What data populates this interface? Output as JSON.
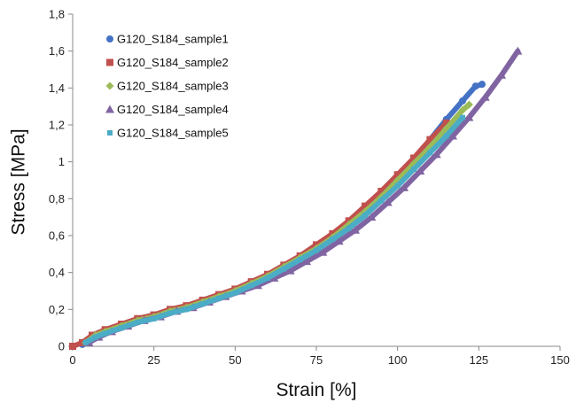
{
  "chart_data": {
    "type": "scatter",
    "title": "",
    "xlabel": "Strain [%]",
    "ylabel": "Stress [MPa]",
    "xlim": [
      0,
      150
    ],
    "ylim": [
      0,
      1.8
    ],
    "x_ticks": [
      0,
      25,
      50,
      75,
      100,
      125,
      150
    ],
    "x_tick_labels": [
      "0",
      "25",
      "50",
      "75",
      "100",
      "125",
      "150"
    ],
    "y_ticks": [
      0,
      0.2,
      0.4,
      0.6,
      0.8,
      1.0,
      1.2,
      1.4,
      1.6,
      1.8
    ],
    "y_tick_labels": [
      "0",
      "0,2",
      "0,4",
      "0,6",
      "0,8",
      "1",
      "1,2",
      "1,4",
      "1,6",
      "1,8"
    ],
    "grid": false,
    "legend_position": "top-left",
    "series": [
      {
        "name": "G120_S184_sample1",
        "color": "#4472c4",
        "marker": "circle",
        "points": [
          [
            3,
            0.01
          ],
          [
            6,
            0.05
          ],
          [
            10,
            0.08
          ],
          [
            15,
            0.11
          ],
          [
            20,
            0.14
          ],
          [
            25,
            0.16
          ],
          [
            30,
            0.19
          ],
          [
            35,
            0.21
          ],
          [
            40,
            0.24
          ],
          [
            45,
            0.27
          ],
          [
            50,
            0.3
          ],
          [
            55,
            0.34
          ],
          [
            60,
            0.38
          ],
          [
            65,
            0.43
          ],
          [
            70,
            0.48
          ],
          [
            75,
            0.53
          ],
          [
            80,
            0.59
          ],
          [
            85,
            0.66
          ],
          [
            90,
            0.74
          ],
          [
            95,
            0.82
          ],
          [
            100,
            0.91
          ],
          [
            105,
            1.01
          ],
          [
            110,
            1.12
          ],
          [
            115,
            1.23
          ],
          [
            120,
            1.33
          ],
          [
            124,
            1.41
          ],
          [
            126,
            1.42
          ]
        ]
      },
      {
        "name": "G120_S184_sample2",
        "color": "#c0504d",
        "marker": "square",
        "points": [
          [
            0,
            0.0
          ],
          [
            3,
            0.02
          ],
          [
            6,
            0.06
          ],
          [
            10,
            0.09
          ],
          [
            15,
            0.12
          ],
          [
            20,
            0.15
          ],
          [
            25,
            0.17
          ],
          [
            30,
            0.2
          ],
          [
            35,
            0.22
          ],
          [
            40,
            0.25
          ],
          [
            45,
            0.28
          ],
          [
            50,
            0.31
          ],
          [
            55,
            0.35
          ],
          [
            60,
            0.39
          ],
          [
            65,
            0.44
          ],
          [
            70,
            0.49
          ],
          [
            75,
            0.55
          ],
          [
            80,
            0.61
          ],
          [
            85,
            0.68
          ],
          [
            90,
            0.76
          ],
          [
            95,
            0.84
          ],
          [
            100,
            0.93
          ],
          [
            105,
            1.02
          ],
          [
            110,
            1.12
          ],
          [
            115,
            1.21
          ]
        ]
      },
      {
        "name": "G120_S184_sample3",
        "color": "#9bbb59",
        "marker": "diamond",
        "points": [
          [
            4,
            0.02
          ],
          [
            7,
            0.06
          ],
          [
            10,
            0.08
          ],
          [
            15,
            0.11
          ],
          [
            20,
            0.14
          ],
          [
            25,
            0.16
          ],
          [
            30,
            0.19
          ],
          [
            35,
            0.21
          ],
          [
            40,
            0.24
          ],
          [
            45,
            0.27
          ],
          [
            50,
            0.3
          ],
          [
            55,
            0.34
          ],
          [
            60,
            0.38
          ],
          [
            65,
            0.43
          ],
          [
            70,
            0.48
          ],
          [
            75,
            0.53
          ],
          [
            80,
            0.59
          ],
          [
            85,
            0.66
          ],
          [
            90,
            0.73
          ],
          [
            95,
            0.81
          ],
          [
            100,
            0.9
          ],
          [
            105,
            0.99
          ],
          [
            110,
            1.08
          ],
          [
            115,
            1.18
          ],
          [
            120,
            1.28
          ],
          [
            122,
            1.31
          ]
        ]
      },
      {
        "name": "G120_S184_sample4",
        "color": "#8064a2",
        "marker": "triangle",
        "points": [
          [
            5,
            0.02
          ],
          [
            8,
            0.05
          ],
          [
            12,
            0.08
          ],
          [
            17,
            0.11
          ],
          [
            22,
            0.14
          ],
          [
            27,
            0.16
          ],
          [
            32,
            0.19
          ],
          [
            37,
            0.21
          ],
          [
            42,
            0.24
          ],
          [
            47,
            0.27
          ],
          [
            52,
            0.3
          ],
          [
            57,
            0.33
          ],
          [
            62,
            0.37
          ],
          [
            67,
            0.41
          ],
          [
            72,
            0.46
          ],
          [
            77,
            0.51
          ],
          [
            82,
            0.57
          ],
          [
            87,
            0.63
          ],
          [
            92,
            0.7
          ],
          [
            97,
            0.78
          ],
          [
            102,
            0.86
          ],
          [
            107,
            0.95
          ],
          [
            112,
            1.04
          ],
          [
            117,
            1.14
          ],
          [
            122,
            1.24
          ],
          [
            127,
            1.35
          ],
          [
            132,
            1.47
          ],
          [
            137,
            1.6
          ]
        ]
      },
      {
        "name": "G120_S184_sample5",
        "color": "#4bacc6",
        "marker": "small-square",
        "points": [
          [
            4,
            0.02
          ],
          [
            7,
            0.05
          ],
          [
            10,
            0.07
          ],
          [
            15,
            0.1
          ],
          [
            20,
            0.13
          ],
          [
            25,
            0.15
          ],
          [
            30,
            0.18
          ],
          [
            35,
            0.2
          ],
          [
            40,
            0.23
          ],
          [
            45,
            0.26
          ],
          [
            50,
            0.29
          ],
          [
            55,
            0.33
          ],
          [
            60,
            0.37
          ],
          [
            65,
            0.42
          ],
          [
            70,
            0.47
          ],
          [
            75,
            0.52
          ],
          [
            80,
            0.58
          ],
          [
            85,
            0.64
          ],
          [
            90,
            0.71
          ],
          [
            95,
            0.79
          ],
          [
            100,
            0.87
          ],
          [
            105,
            0.96
          ],
          [
            110,
            1.05
          ],
          [
            115,
            1.14
          ],
          [
            120,
            1.24
          ]
        ]
      }
    ]
  }
}
